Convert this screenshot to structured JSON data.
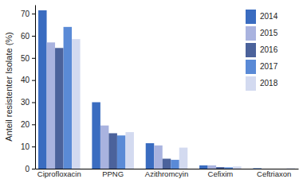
{
  "chart_data": {
    "type": "bar",
    "y_label": "Anteil resistenter Isolate (%)",
    "categories": [
      "Ciprofloxacin",
      "PPNG",
      "Azithromcyin",
      "Cefixim",
      "Ceftriaxon"
    ],
    "series": [
      {
        "name": "2014",
        "color": "#3a6cc0",
        "values": [
          71.5,
          30,
          11.5,
          1.5,
          0.2
        ]
      },
      {
        "name": "2015",
        "color": "#a9b3df",
        "values": [
          57,
          19.5,
          10.5,
          1.5,
          0
        ]
      },
      {
        "name": "2016",
        "color": "#4b629b",
        "values": [
          54.5,
          16,
          4.5,
          0.7,
          0
        ]
      },
      {
        "name": "2017",
        "color": "#5a8ad6",
        "values": [
          64,
          15,
          4,
          0.6,
          0
        ]
      },
      {
        "name": "2018",
        "color": "#d3daf0",
        "values": [
          58.5,
          16.5,
          9.5,
          1,
          0.2
        ]
      }
    ],
    "ylim": [
      0,
      74
    ],
    "yticks": [
      0,
      10,
      20,
      30,
      40,
      50,
      60,
      70
    ],
    "grid": false,
    "legend": "top-right"
  }
}
